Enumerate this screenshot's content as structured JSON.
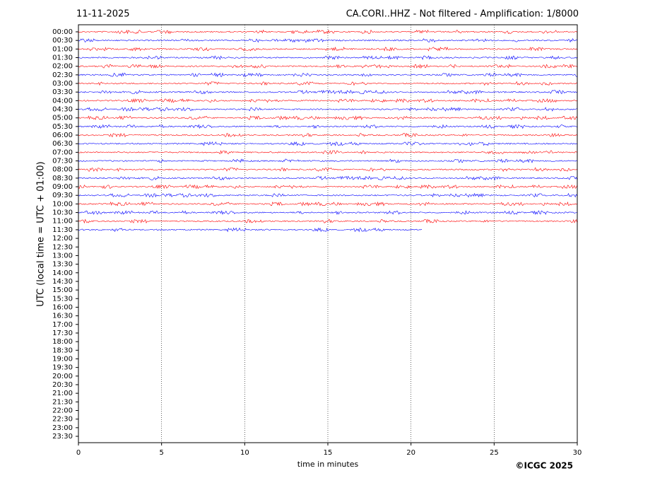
{
  "chart_data": {
    "type": "helicorder",
    "title_left": "11-11-2025",
    "title_right": "CA.CORI..HHZ - Not filtered - Amplification: 1/8000",
    "ylabel": "UTC (local time = UTC + 01:00)",
    "xlabel": "time in minutes",
    "copyright": "©ICGC 2025",
    "xlim": [
      0,
      30
    ],
    "xticks": [
      0,
      5,
      10,
      15,
      20,
      25,
      30
    ],
    "grid": true,
    "colors": [
      "#ff0000",
      "#0000ff"
    ],
    "categories": [
      "00:00",
      "00:30",
      "01:00",
      "01:30",
      "02:00",
      "02:30",
      "03:00",
      "03:30",
      "04:00",
      "04:30",
      "05:00",
      "05:30",
      "06:00",
      "06:30",
      "07:00",
      "07:30",
      "08:00",
      "08:30",
      "09:00",
      "09:30",
      "10:00",
      "10:30",
      "11:00",
      "11:30",
      "12:00",
      "12:30",
      "13:00",
      "13:30",
      "14:00",
      "14:30",
      "15:00",
      "15:30",
      "16:00",
      "16:30",
      "17:00",
      "17:30",
      "18:00",
      "18:30",
      "19:00",
      "19:30",
      "20:00",
      "20:30",
      "21:00",
      "21:30",
      "22:00",
      "22:30",
      "23:00",
      "23:30"
    ],
    "values": [
      30,
      30,
      30,
      30,
      30,
      30,
      30,
      30,
      30,
      30,
      30,
      30,
      30,
      30,
      30,
      30,
      30,
      30,
      30,
      30,
      30,
      30,
      30,
      20.7,
      null,
      null,
      null,
      null,
      null,
      null,
      null,
      null,
      null,
      null,
      null,
      null,
      null,
      null,
      null,
      null,
      null,
      null,
      null,
      null,
      null,
      null,
      null,
      null
    ]
  }
}
